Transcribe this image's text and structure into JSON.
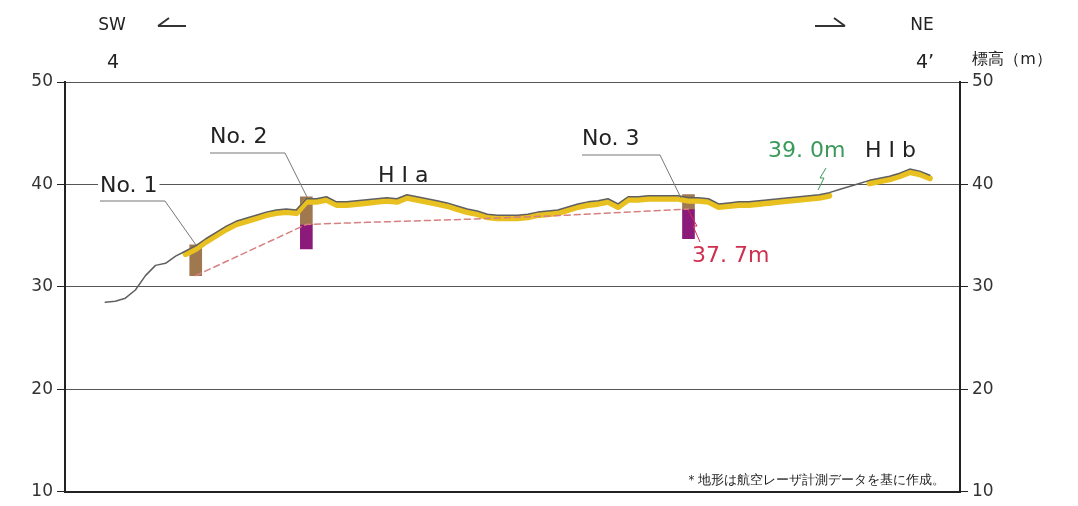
{
  "chart_data": {
    "type": "line",
    "y2label": "標高（m）",
    "categories": [
      null,
      null,
      null,
      null,
      null,
      null,
      null,
      null,
      null,
      null,
      null,
      null,
      null,
      null,
      null,
      null,
      null,
      null,
      null,
      null,
      null,
      null,
      null,
      null,
      null,
      null,
      null,
      null,
      null,
      null,
      null,
      null,
      null,
      null,
      null,
      null,
      null,
      null,
      null,
      null,
      null,
      null,
      null,
      null,
      null,
      null,
      null,
      null,
      null,
      null,
      null,
      null,
      null,
      null,
      null,
      null,
      null,
      null,
      null,
      null,
      null,
      null,
      null,
      null,
      null,
      null,
      null,
      null,
      null,
      null,
      null,
      null,
      null,
      null,
      null,
      null,
      null,
      null,
      null,
      null,
      null,
      null,
      null,
      null,
      null,
      null,
      null,
      null,
      null,
      null
    ],
    "series": [
      {
        "type": "line",
        "color": "#e8c020",
        "values": [
          null,
          null,
          null,
          null,
          null,
          null,
          null,
          null,
          null,
          null,
          null,
          null,
          33.2,
          33.7,
          34.4,
          35.0,
          35.6,
          36.1,
          36.4,
          36.7,
          37.0,
          37.2,
          37.3,
          37.2,
          38.3,
          38.3,
          38.5,
          38.0,
          38.0,
          38.1,
          38.2,
          38.3,
          38.4,
          38.3,
          38.7,
          38.5,
          38.3,
          38.1,
          37.9,
          37.6,
          37.3,
          37.1,
          36.8,
          36.7,
          36.7,
          36.7,
          36.8,
          37.0,
          37.1,
          37.2,
          37.5,
          37.8,
          38.0,
          38.1,
          38.3,
          37.8,
          38.5,
          38.5,
          38.6,
          38.6,
          38.6,
          38.6,
          38.4,
          38.4,
          38.3,
          37.8,
          37.9,
          38.0,
          38.0,
          38.1,
          38.2,
          38.3,
          38.4,
          38.5,
          38.6,
          38.7,
          38.9,
          null,
          null,
          null,
          40.1,
          40.3,
          40.5,
          40.8,
          41.2,
          41.0,
          40.6,
          null,
          null,
          null
        ]
      },
      {
        "type": "line",
        "color": "#606060",
        "values": [
          null,
          null,
          null,
          null,
          28.5,
          28.6,
          28.9,
          29.7,
          31.1,
          32.1,
          32.3,
          33.0,
          33.5,
          34.0,
          34.7,
          35.3,
          35.9,
          36.4,
          36.7,
          37.0,
          37.3,
          37.5,
          37.6,
          37.5,
          38.6,
          38.6,
          38.8,
          38.3,
          38.3,
          38.4,
          38.5,
          38.6,
          38.7,
          38.6,
          39.0,
          38.8,
          38.6,
          38.4,
          38.2,
          37.9,
          37.6,
          37.4,
          37.1,
          37.0,
          37.0,
          37.0,
          37.1,
          37.3,
          37.4,
          37.5,
          37.8,
          38.1,
          38.3,
          38.4,
          38.6,
          38.1,
          38.8,
          38.8,
          38.9,
          38.9,
          38.9,
          38.9,
          38.7,
          38.7,
          38.6,
          38.1,
          38.2,
          38.3,
          38.3,
          38.4,
          38.5,
          38.6,
          38.7,
          38.8,
          38.9,
          39.0,
          39.2,
          39.5,
          39.8,
          40.1,
          40.4,
          40.6,
          40.8,
          41.1,
          41.5,
          41.3,
          40.9,
          null,
          null,
          null
        ]
      },
      {
        "type": "line",
        "color": "#d88080",
        "line_style": "dashed",
        "values": [
          null,
          null,
          null,
          null,
          null,
          null,
          null,
          null,
          null,
          null,
          null,
          null,
          null,
          31.1,
          null,
          null,
          null,
          null,
          null,
          null,
          null,
          null,
          null,
          null,
          36.1,
          null,
          null,
          null,
          null,
          null,
          36.3,
          null,
          null,
          null,
          null,
          null,
          null,
          null,
          null,
          null,
          36.6,
          null,
          null,
          null,
          null,
          null,
          null,
          null,
          null,
          null,
          37.0,
          null,
          null,
          null,
          null,
          null,
          null,
          null,
          37.4,
          null,
          null,
          null,
          37.6,
          null,
          null,
          null,
          null,
          null,
          null,
          null,
          null,
          null,
          null,
          null,
          null,
          null,
          null,
          null,
          null,
          null,
          null,
          null,
          null,
          null,
          null,
          null,
          null,
          null,
          null,
          null
        ]
      },
      {
        "type": "bar",
        "color": "#a07850",
        "base": [
          null,
          null,
          null,
          null,
          null,
          null,
          null,
          null,
          null,
          null,
          null,
          null,
          null,
          31.1,
          null,
          null,
          null,
          null,
          null,
          null,
          null,
          null,
          null,
          null,
          36.1,
          null,
          null,
          null,
          null,
          null,
          null,
          null,
          null,
          null,
          null,
          null,
          null,
          null,
          null,
          null,
          null,
          null,
          null,
          null,
          null,
          null,
          null,
          null,
          null,
          null,
          null,
          null,
          null,
          null,
          null,
          null,
          null,
          null,
          null,
          null,
          null,
          null,
          37.6,
          null,
          null,
          null,
          null,
          null,
          null,
          null,
          null,
          null,
          null,
          null,
          null,
          null,
          null,
          null,
          null,
          null,
          null,
          null,
          null,
          null,
          null,
          null,
          null,
          null,
          null,
          null
        ],
        "values": [
          null,
          null,
          null,
          null,
          null,
          null,
          null,
          null,
          null,
          null,
          null,
          null,
          null,
          3.0,
          null,
          null,
          null,
          null,
          null,
          null,
          null,
          null,
          null,
          null,
          2.7,
          null,
          null,
          null,
          null,
          null,
          null,
          null,
          null,
          null,
          null,
          null,
          null,
          null,
          null,
          null,
          null,
          null,
          null,
          null,
          null,
          null,
          null,
          null,
          null,
          null,
          null,
          null,
          null,
          null,
          null,
          null,
          null,
          null,
          null,
          null,
          null,
          null,
          1.4,
          null,
          null,
          null,
          null,
          null,
          null,
          null,
          null,
          null,
          null,
          null,
          null,
          null,
          null,
          null,
          null,
          null,
          null,
          null,
          null,
          null,
          null,
          null,
          null,
          null,
          null,
          null
        ]
      },
      {
        "type": "bar",
        "color": "#8b1a7a",
        "base": [
          null,
          null,
          null,
          null,
          null,
          null,
          null,
          null,
          null,
          null,
          null,
          null,
          null,
          null,
          null,
          null,
          null,
          null,
          null,
          null,
          null,
          null,
          null,
          null,
          33.7,
          null,
          null,
          null,
          null,
          null,
          null,
          null,
          null,
          null,
          null,
          null,
          null,
          null,
          null,
          null,
          null,
          null,
          null,
          null,
          null,
          null,
          null,
          null,
          null,
          null,
          null,
          null,
          null,
          null,
          null,
          null,
          null,
          null,
          null,
          null,
          null,
          null,
          34.7,
          null,
          null,
          null,
          null,
          null,
          null,
          null,
          null,
          null,
          null,
          null,
          null,
          null,
          null,
          null,
          null,
          null,
          null,
          null,
          null,
          null,
          null,
          null,
          null,
          null,
          null,
          null
        ],
        "values": [
          null,
          null,
          null,
          null,
          null,
          null,
          null,
          null,
          null,
          null,
          null,
          null,
          null,
          null,
          null,
          null,
          null,
          null,
          null,
          null,
          null,
          null,
          null,
          null,
          2.4,
          null,
          null,
          null,
          null,
          null,
          null,
          null,
          null,
          null,
          null,
          null,
          null,
          null,
          null,
          null,
          null,
          null,
          null,
          null,
          null,
          null,
          null,
          null,
          null,
          null,
          null,
          null,
          null,
          null,
          null,
          null,
          null,
          null,
          null,
          null,
          null,
          null,
          2.9,
          null,
          null,
          null,
          null,
          null,
          null,
          null,
          null,
          null,
          null,
          null,
          null,
          null,
          null,
          null,
          null,
          null,
          null,
          null,
          null,
          null,
          null,
          null,
          null,
          null,
          null,
          null
        ]
      }
    ],
    "ylim": [
      10,
      50
    ],
    "yticks": [
      10,
      20,
      30,
      40,
      50
    ],
    "y2lim": [
      10,
      50
    ],
    "y2ticks": [
      10,
      20,
      30,
      40,
      50
    ],
    "grid": "y",
    "legend": false,
    "marker": "none",
    "tick_labels": "y",
    "annotations": [
      "SW",
      "NE",
      "4",
      "4’",
      "No. 1",
      "No. 2",
      "H I a",
      "No. 3",
      "37. 7m",
      "39. 0m",
      "H I b",
      "＊地形は航空レーザ計測データを基に作成。"
    ]
  }
}
